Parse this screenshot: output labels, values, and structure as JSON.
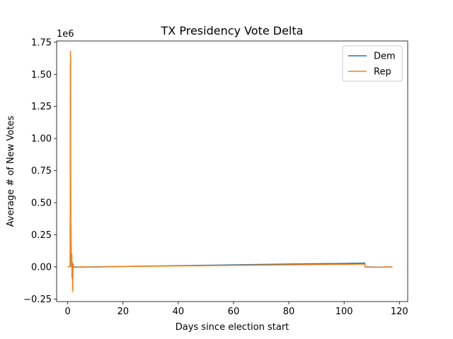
{
  "chart_data": {
    "type": "line",
    "title": "TX Presidency Vote Delta",
    "xlabel": "Days since election start",
    "ylabel": "Average # of New Votes",
    "y_offset_label": "1e6",
    "xlim": [
      -4,
      123
    ],
    "ylim": [
      -0.27,
      1.76
    ],
    "x_ticks": [
      0,
      20,
      40,
      60,
      80,
      100,
      120
    ],
    "x_tick_labels": [
      "0",
      "20",
      "40",
      "60",
      "80",
      "100",
      "120"
    ],
    "y_ticks": [
      -0.25,
      0,
      0.25,
      0.5,
      0.75,
      1.0,
      1.25,
      1.5,
      1.75
    ],
    "y_tick_labels": [
      "−0.25",
      "0.00",
      "0.25",
      "0.50",
      "0.75",
      "1.00",
      "1.25",
      "1.50",
      "1.75"
    ],
    "grid": false,
    "legend_position": "top-right",
    "series": [
      {
        "name": "Dem",
        "color": "#1f77b4",
        "points": [
          [
            0.0,
            0.0
          ],
          [
            0.9,
            0.005
          ],
          [
            1.0,
            1.6
          ],
          [
            1.1,
            0.35
          ],
          [
            1.2,
            0.2
          ],
          [
            1.3,
            0.1
          ],
          [
            1.4,
            0.0
          ],
          [
            1.5,
            0.05
          ],
          [
            1.6,
            -0.08
          ],
          [
            1.7,
            0.03
          ],
          [
            1.8,
            -0.17
          ],
          [
            1.9,
            0.02
          ],
          [
            2.0,
            0.0
          ],
          [
            2.5,
            -0.003
          ],
          [
            3.0,
            0.0
          ],
          [
            5.0,
            -0.002
          ],
          [
            10.0,
            0.0
          ],
          [
            20.0,
            0.004
          ],
          [
            40.0,
            0.01
          ],
          [
            60.0,
            0.016
          ],
          [
            80.0,
            0.022
          ],
          [
            100.0,
            0.027
          ],
          [
            107.5,
            0.03
          ],
          [
            107.6,
            0.0
          ],
          [
            112.0,
            -0.002
          ],
          [
            117.5,
            0.0
          ]
        ]
      },
      {
        "name": "Rep",
        "color": "#ff7f0e",
        "points": [
          [
            0.0,
            0.0
          ],
          [
            0.9,
            0.005
          ],
          [
            1.0,
            1.68
          ],
          [
            1.1,
            0.3
          ],
          [
            1.2,
            0.22
          ],
          [
            1.3,
            0.12
          ],
          [
            1.4,
            0.02
          ],
          [
            1.5,
            0.1
          ],
          [
            1.6,
            -0.05
          ],
          [
            1.7,
            0.02
          ],
          [
            1.8,
            -0.19
          ],
          [
            1.9,
            0.0
          ],
          [
            2.0,
            -0.01
          ],
          [
            2.5,
            0.0
          ],
          [
            3.0,
            -0.004
          ],
          [
            5.0,
            0.0
          ],
          [
            10.0,
            -0.002
          ],
          [
            20.0,
            0.003
          ],
          [
            40.0,
            0.008
          ],
          [
            60.0,
            0.012
          ],
          [
            80.0,
            0.016
          ],
          [
            100.0,
            0.02
          ],
          [
            107.5,
            0.022
          ],
          [
            107.6,
            -0.002
          ],
          [
            112.0,
            -0.003
          ],
          [
            117.5,
            0.0
          ]
        ]
      }
    ]
  }
}
